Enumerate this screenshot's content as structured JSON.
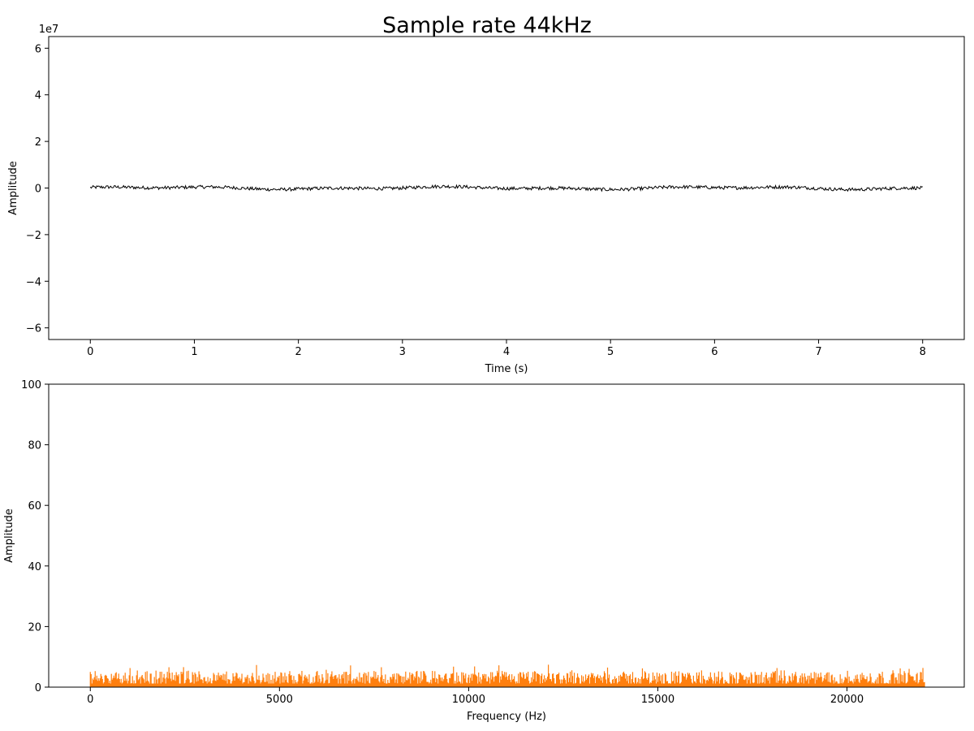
{
  "figure": {
    "title": "Sample rate 44kHz"
  },
  "chart_data": [
    {
      "type": "line",
      "xlabel": "Time (s)",
      "ylabel": "Amplitude",
      "offset_text": "1e7",
      "xlim": [
        -0.4,
        8.4
      ],
      "ylim": [
        -6.5,
        6.5
      ],
      "x_ticks": [
        0,
        1,
        2,
        3,
        4,
        5,
        6,
        7,
        8
      ],
      "x_tick_labels": [
        "0",
        "1",
        "2",
        "3",
        "4",
        "5",
        "6",
        "7",
        "8"
      ],
      "y_ticks": [
        -6,
        -4,
        -2,
        0,
        2,
        4,
        6
      ],
      "y_tick_labels": [
        "−6",
        "−4",
        "−2",
        "0",
        "2",
        "4",
        "6"
      ],
      "grid": false,
      "series": [
        {
          "color": "#000000",
          "x_range": [
            0,
            8
          ],
          "center": 0.0,
          "amplitude": 0.12
        }
      ]
    },
    {
      "type": "bar",
      "xlabel": "Frequency (Hz)",
      "ylabel": "Amplitude",
      "xlim": [
        -1100,
        23100
      ],
      "ylim": [
        0,
        100
      ],
      "x_ticks": [
        0,
        5000,
        10000,
        15000,
        20000
      ],
      "x_tick_labels": [
        "0",
        "5000",
        "10000",
        "15000",
        "20000"
      ],
      "y_ticks": [
        0,
        20,
        40,
        60,
        80,
        100
      ],
      "y_tick_labels": [
        "0",
        "20",
        "40",
        "60",
        "80",
        "100"
      ],
      "grid": false,
      "series": [
        {
          "color": "#ff7f0e",
          "x_range": [
            0,
            22050
          ],
          "typical_max": 5,
          "peak_max": 7.5
        }
      ]
    }
  ]
}
